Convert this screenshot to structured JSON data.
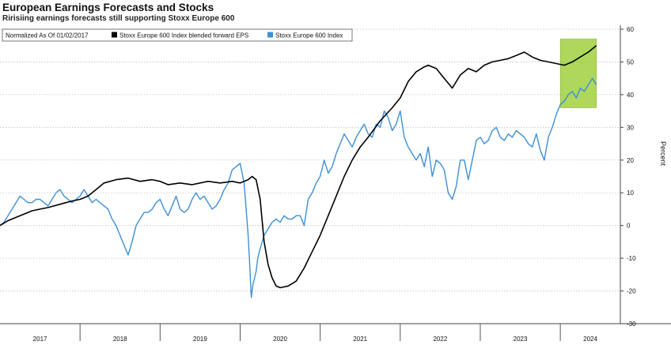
{
  "title": "European Earnings Forecasts and Stocks",
  "subtitle": "Ririsiing earnings forecasts still supporting Stoxx Europe 600",
  "chart_data": {
    "type": "line",
    "ylabel": "Percent",
    "ylim": [
      -30,
      60
    ],
    "yticks": [
      60,
      50,
      40,
      30,
      20,
      10,
      0,
      -10,
      -20,
      -30
    ],
    "ytick_labels": [
      "60",
      "50",
      "40",
      "30",
      "20",
      "10",
      "0",
      "-10",
      "-20",
      "-30"
    ],
    "xlim": [
      2017.0,
      2024.75
    ],
    "year_labels": [
      "2017",
      "2018",
      "2019",
      "2020",
      "2021",
      "2022",
      "2023",
      "2024"
    ],
    "legend": {
      "header": "Normalized As Of 01/02/2017",
      "entries": [
        {
          "name": "Stoxx Europe 600 Index blended forward EPS",
          "color": "#000000"
        },
        {
          "name": "Stoxx Europe 600 Index",
          "color": "#3d8fd6"
        }
      ]
    },
    "highlight": {
      "x0": 2024.0,
      "x1": 2024.45,
      "y0": 36,
      "y1": 57,
      "color": "#9acd32"
    },
    "series": [
      {
        "name": "Stoxx Europe 600 Index blended forward EPS",
        "color": "#000000",
        "x": [
          2017.0,
          2017.1,
          2017.25,
          2017.4,
          2017.5,
          2017.6,
          2017.75,
          2017.9,
          2018.0,
          2018.1,
          2018.2,
          2018.3,
          2018.45,
          2018.6,
          2018.75,
          2018.9,
          2019.0,
          2019.1,
          2019.25,
          2019.4,
          2019.5,
          2019.6,
          2019.75,
          2019.9,
          2020.0,
          2020.1,
          2020.15,
          2020.2,
          2020.25,
          2020.3,
          2020.35,
          2020.4,
          2020.45,
          2020.5,
          2020.6,
          2020.7,
          2020.8,
          2020.9,
          2021.0,
          2021.1,
          2021.2,
          2021.3,
          2021.4,
          2021.5,
          2021.6,
          2021.75,
          2021.9,
          2022.0,
          2022.1,
          2022.2,
          2022.3,
          2022.35,
          2022.45,
          2022.55,
          2022.65,
          2022.75,
          2022.85,
          2022.95,
          2023.05,
          2023.15,
          2023.25,
          2023.35,
          2023.45,
          2023.55,
          2023.65,
          2023.75,
          2023.85,
          2023.95,
          2024.05,
          2024.15,
          2024.25,
          2024.35,
          2024.45
        ],
        "values": [
          0,
          1.5,
          3,
          4.5,
          5,
          5.5,
          6.5,
          7.5,
          8,
          9,
          11,
          13,
          14,
          14.5,
          13.5,
          14,
          13.5,
          12.5,
          13,
          12.5,
          13,
          13.5,
          13,
          13.5,
          13,
          14,
          15,
          14,
          8,
          -5,
          -12,
          -16,
          -18.5,
          -19,
          -18.5,
          -17,
          -13,
          -8,
          -3,
          3,
          9,
          15,
          20,
          24,
          27,
          32,
          36,
          39,
          44,
          47,
          48.5,
          49,
          48,
          45,
          42,
          46,
          48,
          47,
          49,
          50,
          50.5,
          51,
          52,
          53,
          51.5,
          50.5,
          50,
          49.5,
          49,
          50,
          51.5,
          53,
          55
        ]
      },
      {
        "name": "Stoxx Europe 600 Index",
        "color": "#3d8fd6",
        "x": [
          2017.0,
          2017.05,
          2017.1,
          2017.15,
          2017.2,
          2017.25,
          2017.3,
          2017.35,
          2017.4,
          2017.45,
          2017.5,
          2017.55,
          2017.6,
          2017.65,
          2017.7,
          2017.75,
          2017.8,
          2017.85,
          2017.9,
          2017.95,
          2018.0,
          2018.05,
          2018.1,
          2018.15,
          2018.2,
          2018.25,
          2018.3,
          2018.35,
          2018.4,
          2018.45,
          2018.5,
          2018.55,
          2018.6,
          2018.65,
          2018.7,
          2018.75,
          2018.8,
          2018.85,
          2018.9,
          2018.95,
          2019.0,
          2019.05,
          2019.1,
          2019.15,
          2019.2,
          2019.25,
          2019.3,
          2019.35,
          2019.4,
          2019.45,
          2019.5,
          2019.55,
          2019.6,
          2019.65,
          2019.7,
          2019.75,
          2019.8,
          2019.85,
          2019.9,
          2019.95,
          2020.0,
          2020.05,
          2020.1,
          2020.12,
          2020.14,
          2020.16,
          2020.18,
          2020.2,
          2020.22,
          2020.25,
          2020.3,
          2020.35,
          2020.4,
          2020.45,
          2020.5,
          2020.55,
          2020.6,
          2020.65,
          2020.7,
          2020.75,
          2020.8,
          2020.85,
          2020.9,
          2020.95,
          2021.0,
          2021.05,
          2021.1,
          2021.15,
          2021.2,
          2021.25,
          2021.3,
          2021.35,
          2021.4,
          2021.45,
          2021.5,
          2021.55,
          2021.6,
          2021.65,
          2021.7,
          2021.75,
          2021.8,
          2021.85,
          2021.9,
          2021.95,
          2022.0,
          2022.05,
          2022.1,
          2022.15,
          2022.2,
          2022.25,
          2022.3,
          2022.35,
          2022.4,
          2022.45,
          2022.5,
          2022.55,
          2022.6,
          2022.65,
          2022.7,
          2022.75,
          2022.8,
          2022.85,
          2022.9,
          2022.95,
          2023.0,
          2023.05,
          2023.1,
          2023.15,
          2023.2,
          2023.25,
          2023.3,
          2023.35,
          2023.4,
          2023.45,
          2023.5,
          2023.55,
          2023.6,
          2023.65,
          2023.7,
          2023.75,
          2023.8,
          2023.85,
          2023.9,
          2023.95,
          2024.0,
          2024.05,
          2024.1,
          2024.15,
          2024.2,
          2024.25,
          2024.3,
          2024.35,
          2024.4,
          2024.45
        ],
        "values": [
          0,
          1,
          3,
          5,
          7,
          9,
          8,
          7,
          7,
          8,
          8,
          7,
          6,
          8,
          10,
          11,
          9,
          8,
          7,
          8,
          9,
          11,
          9,
          7,
          8,
          7,
          6,
          5,
          2,
          0,
          -3,
          -6,
          -9,
          -5,
          0,
          2,
          4,
          4,
          5,
          7,
          8,
          5,
          3,
          6,
          9,
          5,
          4,
          5,
          8,
          10,
          8,
          9,
          7,
          5,
          6,
          8,
          11,
          13,
          17,
          18,
          19,
          13,
          -3,
          -12,
          -22,
          -18,
          -16,
          -14,
          -10,
          -7,
          -3,
          -1,
          1,
          2,
          1,
          3,
          2,
          2,
          3,
          3,
          0,
          8,
          10,
          13,
          15,
          20,
          16,
          18,
          22,
          25,
          28,
          26,
          24,
          27,
          29,
          31,
          28,
          27,
          31,
          30,
          35,
          33,
          29,
          31,
          35,
          27,
          24,
          22,
          20,
          22,
          18,
          24,
          15,
          20,
          19,
          17,
          10,
          8,
          12,
          20,
          20,
          14,
          20,
          26,
          27,
          25,
          26,
          29,
          30,
          27,
          26,
          28,
          27,
          29,
          28,
          27,
          25,
          24,
          28,
          23,
          20,
          27,
          30,
          34,
          37,
          38,
          40,
          41,
          39,
          42,
          41,
          43,
          45,
          43
        ]
      }
    ]
  }
}
